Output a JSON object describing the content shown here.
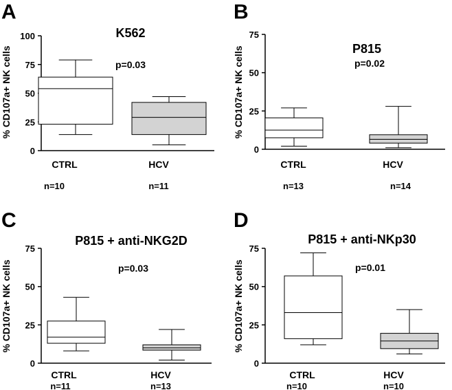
{
  "chart_data": [
    {
      "panel": "A",
      "type": "box",
      "title": "K562",
      "annotation": "p=0.03",
      "ylabel": "% CD107a+ NK cells",
      "ylim": [
        0,
        100
      ],
      "yticks": [
        "0",
        "25",
        "50",
        "75",
        "100"
      ],
      "categories": [
        "CTRL",
        "HCV"
      ],
      "n_labels": [
        "n=10",
        "n=11"
      ],
      "boxes": [
        {
          "whisker_low": 14,
          "q1": 23,
          "median": 54,
          "q3": 64,
          "whisker_high": 79,
          "fill": "#ffffff"
        },
        {
          "whisker_low": 5,
          "q1": 14,
          "median": 29,
          "q3": 42,
          "whisker_high": 47,
          "fill": "#d3d3d3"
        }
      ]
    },
    {
      "panel": "B",
      "type": "box",
      "title": "P815",
      "annotation": "p=0.02",
      "ylabel": "% CD107a+ NK cells",
      "ylim": [
        0,
        75
      ],
      "yticks": [
        "0",
        "25",
        "50",
        "75"
      ],
      "categories": [
        "CTRL",
        "HCV"
      ],
      "n_labels": [
        "n=13",
        "n=14"
      ],
      "boxes": [
        {
          "whisker_low": 2,
          "q1": 7.5,
          "median": 12.5,
          "q3": 20.5,
          "whisker_high": 27,
          "fill": "#ffffff"
        },
        {
          "whisker_low": 1,
          "q1": 4,
          "median": 6.5,
          "q3": 9.5,
          "whisker_high": 28,
          "fill": "#d3d3d3"
        }
      ]
    },
    {
      "panel": "C",
      "type": "box",
      "title": "P815 + anti-NKG2D",
      "annotation": "p=0.03",
      "ylabel": "% CD107a+ NK cells",
      "ylim": [
        0,
        75
      ],
      "yticks": [
        "0",
        "25",
        "50",
        "75"
      ],
      "categories": [
        "CTRL",
        "HCV"
      ],
      "n_labels": [
        "n=11",
        "n=13"
      ],
      "boxes": [
        {
          "whisker_low": 8,
          "q1": 13,
          "median": 17,
          "q3": 27.5,
          "whisker_high": 43,
          "fill": "#ffffff"
        },
        {
          "whisker_low": 2,
          "q1": 8.5,
          "median": 10,
          "q3": 12,
          "whisker_high": 22,
          "fill": "#d3d3d3"
        }
      ]
    },
    {
      "panel": "D",
      "type": "box",
      "title": "P815 + anti-NKp30",
      "annotation": "p=0.01",
      "ylabel": "% CD107a+ NK cells",
      "ylim": [
        0,
        75
      ],
      "yticks": [
        "0",
        "25",
        "50",
        "75"
      ],
      "categories": [
        "CTRL",
        "HCV"
      ],
      "n_labels": [
        "n=10",
        "n=10"
      ],
      "boxes": [
        {
          "whisker_low": 12,
          "q1": 16,
          "median": 33,
          "q3": 57,
          "whisker_high": 72,
          "fill": "#ffffff"
        },
        {
          "whisker_low": 6,
          "q1": 9.5,
          "median": 14.5,
          "q3": 19.5,
          "whisker_high": 35,
          "fill": "#d3d3d3"
        }
      ]
    }
  ]
}
